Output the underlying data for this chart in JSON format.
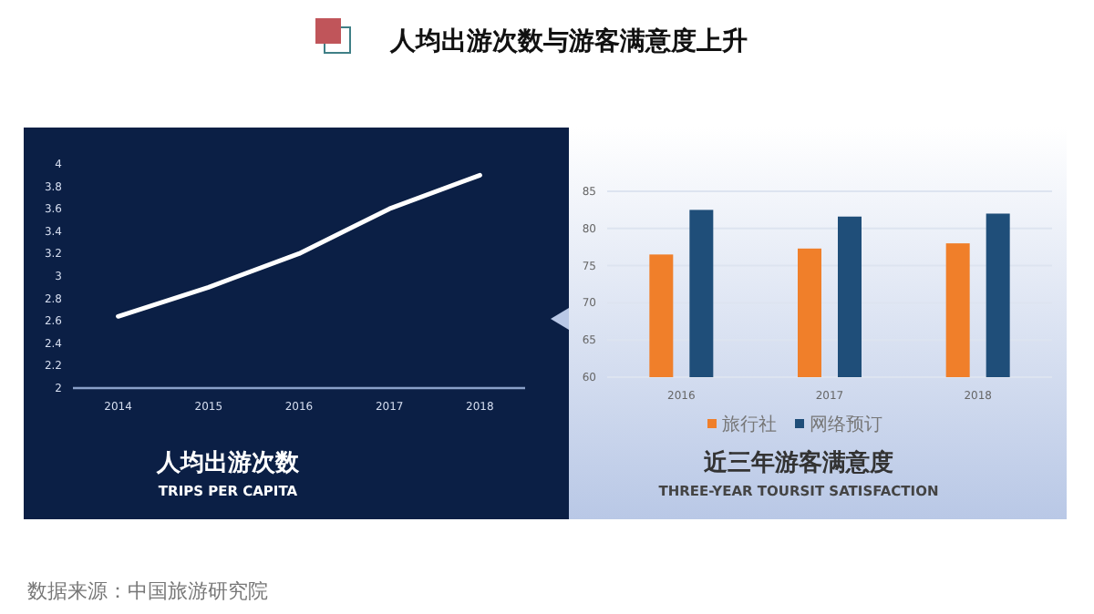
{
  "chart_data": [
    {
      "type": "other",
      "title": "人均出游次数与游客满意度上升",
      "annotations": [
        "数据来源：中国旅游研究院"
      ]
    },
    {
      "type": "line",
      "title": "人均出游次数",
      "subtitle": "TRIPS PER CAPITA",
      "categories": [
        "2014",
        "2015",
        "2016",
        "2017",
        "2018"
      ],
      "series": [
        {
          "color": "#ffffff",
          "values": [
            2.64,
            2.9,
            3.2,
            3.6,
            3.9
          ]
        }
      ],
      "ylim": [
        2,
        4
      ],
      "yticks": [
        2,
        2.2,
        2.4,
        2.6,
        2.8,
        3,
        3.2,
        3.4,
        3.6,
        3.8,
        4
      ],
      "grid": false,
      "marker": "none",
      "line_style": "solid"
    },
    {
      "type": "bar",
      "title": "近三年游客满意度",
      "subtitle": "THREE-YEAR TOURSIT SATISFACTION",
      "categories": [
        "2016",
        "2017",
        "2018"
      ],
      "series": [
        {
          "name": "旅行社",
          "color": "#f07f2a",
          "values": [
            76.5,
            77.3,
            78.0
          ]
        },
        {
          "name": "网络预订",
          "color": "#1f4e79",
          "values": [
            82.5,
            81.6,
            82.0
          ]
        }
      ],
      "ylim": [
        60,
        85
      ],
      "yticks": [
        60,
        65,
        70,
        75,
        80,
        85
      ],
      "grid": "y",
      "legend": "bottom"
    }
  ]
}
